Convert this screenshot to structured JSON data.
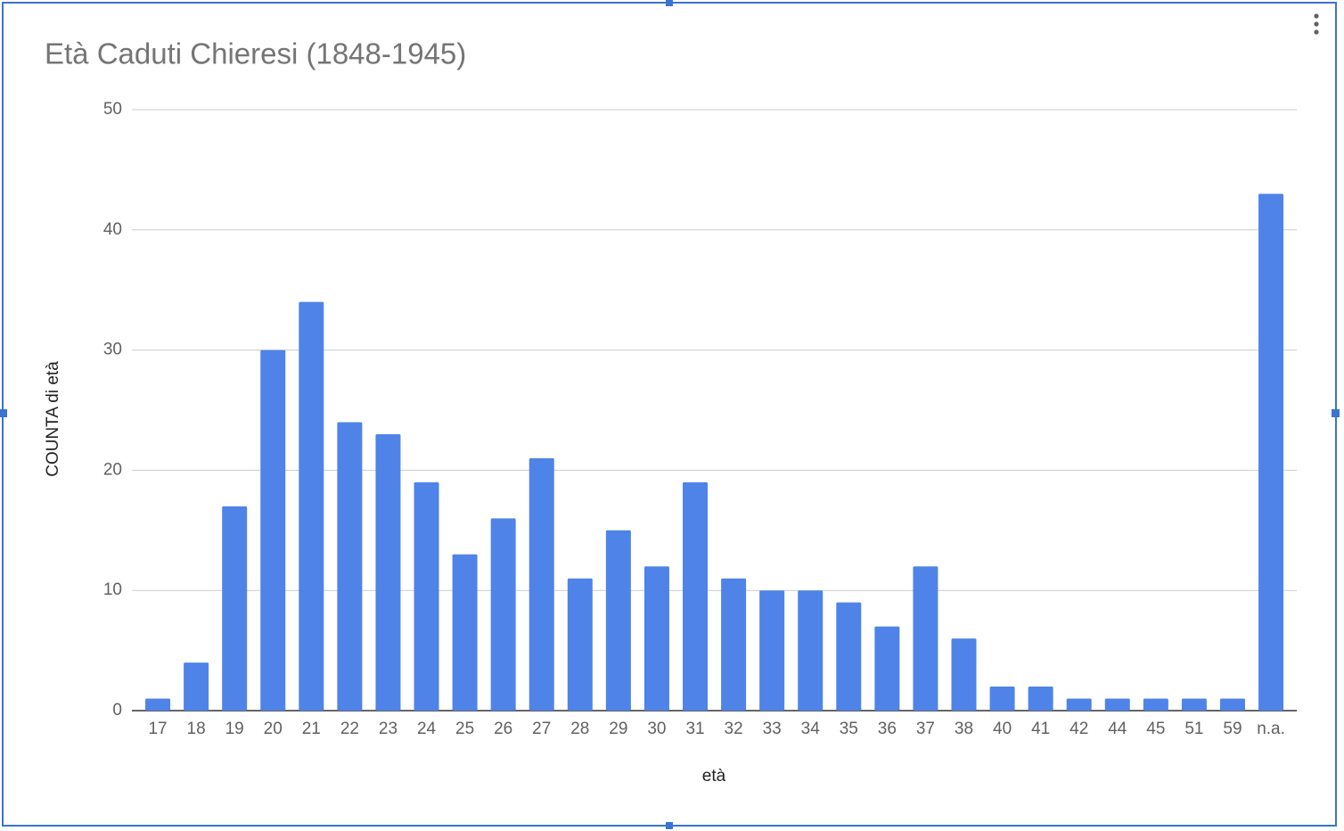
{
  "chart_data": {
    "type": "bar",
    "title": "Età Caduti Chieresi (1848-1945)",
    "x_label": "età",
    "y_label": "COUNTA di età",
    "categories": [
      "17",
      "18",
      "19",
      "20",
      "21",
      "22",
      "23",
      "24",
      "25",
      "26",
      "27",
      "28",
      "29",
      "30",
      "31",
      "32",
      "33",
      "34",
      "35",
      "36",
      "37",
      "38",
      "40",
      "41",
      "42",
      "44",
      "45",
      "51",
      "59",
      "n.a."
    ],
    "values": [
      1,
      4,
      17,
      30,
      34,
      24,
      23,
      19,
      13,
      16,
      21,
      11,
      15,
      12,
      19,
      11,
      10,
      10,
      9,
      7,
      12,
      6,
      2,
      2,
      1,
      1,
      1,
      1,
      1,
      43
    ],
    "color": "#4f83e8",
    "ylim": [
      0,
      50
    ],
    "yticks": [
      0,
      10,
      20,
      30,
      40,
      50
    ],
    "grid": true
  }
}
